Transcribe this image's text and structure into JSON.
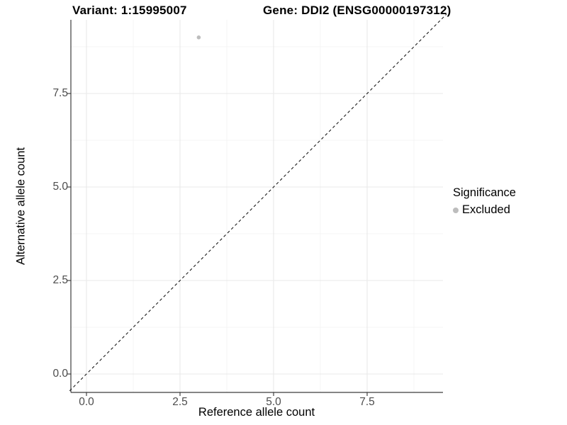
{
  "title": {
    "left": "Variant: 1:15995007",
    "right": "Gene: DDI2 (ENSG00000197312)"
  },
  "axes": {
    "x_label": "Reference allele count",
    "y_label": "Alternative allele count"
  },
  "legend": {
    "title": "Significance",
    "items": [
      {
        "label": "Excluded",
        "color": "#bdbdbd"
      }
    ]
  },
  "colors": {
    "background": "#ffffff",
    "grid_major": "#e9e9e9",
    "grid_minor": "#f4f4f4",
    "axis_line": "#3c3c3c",
    "tick_mark": "#333333",
    "tick_text": "#4d4d4d",
    "abline": "#1a1a1a",
    "point": "#bdbdbd"
  },
  "chart_data": {
    "type": "scatter",
    "title": "Variant: 1:15995007   Gene: DDI2 (ENSG00000197312)",
    "xlabel": "Reference allele count",
    "ylabel": "Alternative allele count",
    "points": [
      {
        "x": 3,
        "y": 9,
        "series": "Excluded"
      }
    ],
    "point_color": "#bdbdbd",
    "point_radius": 2.8,
    "x_ticks": [
      0,
      2.5,
      5,
      7.5
    ],
    "y_ticks": [
      0,
      2.5,
      5,
      7.5
    ],
    "x_tick_labels": [
      "0.0",
      "2.5",
      "5.0",
      "7.5"
    ],
    "y_tick_labels": [
      "0.0",
      "2.5",
      "5.0",
      "7.5"
    ],
    "xlim": [
      -0.45,
      9.55
    ],
    "ylim": [
      -0.49,
      9.47
    ],
    "grid": "major+minor",
    "minor_step": 1.25,
    "legend_position": "right",
    "legend_title": "Significance",
    "legend_entries": [
      "Excluded"
    ],
    "abline": {
      "slope": 1,
      "intercept": 0,
      "style": "dashed",
      "color": "#1a1a1a"
    }
  }
}
